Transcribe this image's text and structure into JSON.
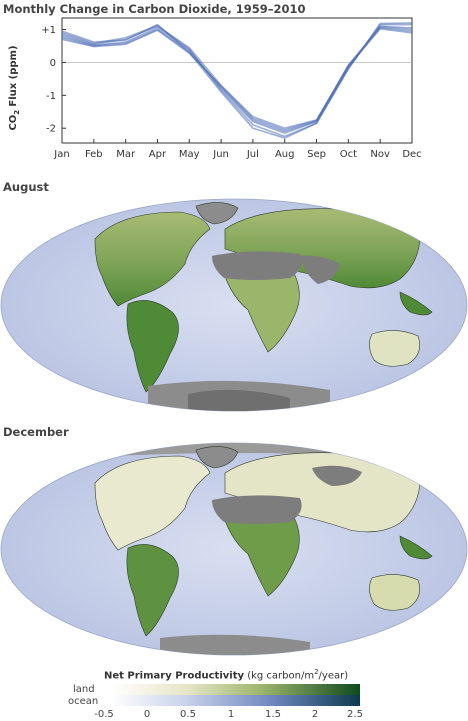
{
  "title": "Monthly Change in Carbon Dioxide, 1959–2010",
  "chart_data": {
    "type": "line",
    "title": "Monthly Change in Carbon Dioxide, 1959–2010",
    "ylabel_main": "CO",
    "ylabel_sub": "2",
    "ylabel_rest": "Flux (ppm)",
    "categories": [
      "Jan",
      "Feb",
      "Mar",
      "Apr",
      "May",
      "Jun",
      "Jul",
      "Aug",
      "Sep",
      "Oct",
      "Nov",
      "Dec"
    ],
    "yticks": [
      "+1",
      "0",
      "-1",
      "-2"
    ],
    "ytick_values": [
      1,
      0,
      -1,
      -2
    ],
    "ylim": [
      -2.45,
      1.35
    ],
    "series_color": "#4a6cb5",
    "series": [
      {
        "values": [
          0.85,
          0.55,
          0.7,
          1.1,
          0.45,
          -0.7,
          -1.65,
          -2.0,
          -1.75,
          -0.1,
          1.05,
          0.95
        ]
      },
      {
        "values": [
          0.8,
          0.52,
          0.62,
          1.05,
          0.38,
          -0.8,
          -1.8,
          -2.15,
          -1.8,
          -0.15,
          1.1,
          1.05
        ]
      },
      {
        "values": [
          0.9,
          0.58,
          0.75,
          1.12,
          0.4,
          -0.85,
          -1.9,
          -2.25,
          -1.85,
          -0.18,
          1.15,
          1.15
        ]
      },
      {
        "values": [
          0.75,
          0.5,
          0.58,
          1.0,
          0.32,
          -0.75,
          -1.75,
          -2.1,
          -1.78,
          -0.08,
          1.08,
          1.0
        ]
      },
      {
        "values": [
          0.95,
          0.62,
          0.68,
          1.15,
          0.3,
          -0.9,
          -2.0,
          -2.3,
          -1.85,
          -0.2,
          1.18,
          1.2
        ]
      },
      {
        "values": [
          0.7,
          0.48,
          0.55,
          0.98,
          0.28,
          -0.72,
          -1.7,
          -2.05,
          -1.76,
          -0.12,
          1.02,
          0.9
        ]
      }
    ]
  },
  "maps": {
    "august_label": "August",
    "december_label": "December"
  },
  "legend": {
    "title_bold": "Net Primary Productivity",
    "title_unit_a": "(kg carbon/m",
    "title_unit_sup": "2",
    "title_unit_b": "/year)",
    "land_label": "land",
    "ocean_label": "ocean",
    "ticks": [
      "-0.5",
      "0",
      "0.5",
      "1",
      "1.5",
      "2",
      "2.5"
    ]
  },
  "colors": {
    "ocean": "#c9d2ea",
    "land_low": "#eeeed6",
    "land_mid": "#b6c48a",
    "land_high": "#3f7a2e",
    "ice": "#8c8c8c",
    "desert": "#7d7d7d"
  }
}
